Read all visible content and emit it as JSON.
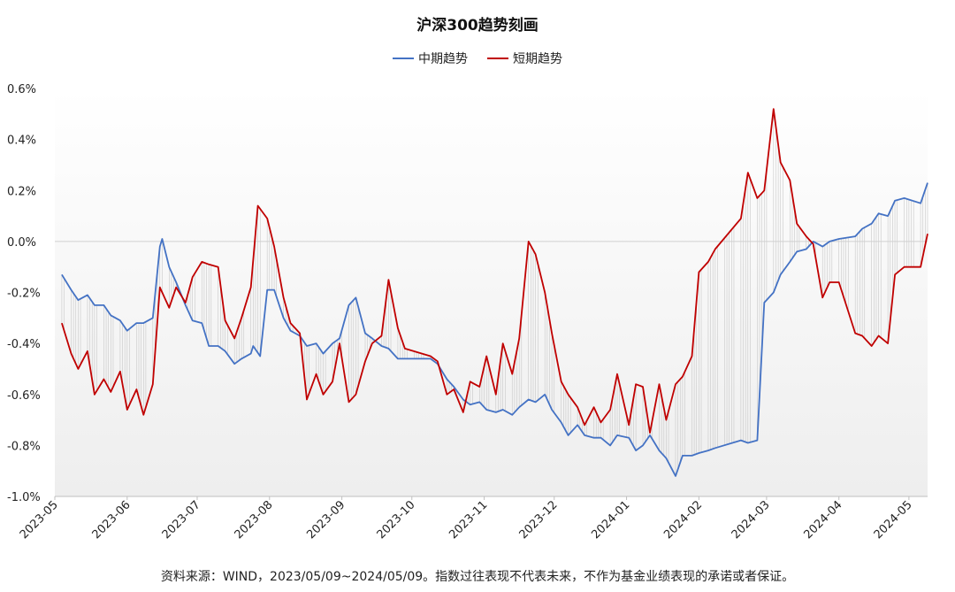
{
  "chart_data": {
    "type": "line",
    "title": "沪深300趋势刻画",
    "xlabel": "",
    "ylabel": "",
    "ylim": [
      -1.0,
      0.6
    ],
    "y_ticks": [
      "-1.0%",
      "-0.8%",
      "-0.6%",
      "-0.4%",
      "-0.2%",
      "0.0%",
      "0.2%",
      "0.4%",
      "0.6%"
    ],
    "x_ticks": [
      "2023-05",
      "2023-06",
      "2023-07",
      "2023-08",
      "2023-09",
      "2023-10",
      "2023-11",
      "2023-12",
      "2024-01",
      "2024-02",
      "2024-03",
      "2024-04",
      "2024-05"
    ],
    "x_range": [
      "2023-05-01",
      "2024-05-09"
    ],
    "legend_position": "top-center",
    "grid": false,
    "series": [
      {
        "name": "中期趋势",
        "color": "#4472C4",
        "x": [
          "2023-05-04",
          "2023-05-08",
          "2023-05-11",
          "2023-05-15",
          "2023-05-18",
          "2023-05-22",
          "2023-05-25",
          "2023-05-29",
          "2023-06-01",
          "2023-06-05",
          "2023-06-08",
          "2023-06-12",
          "2023-06-15",
          "2023-06-16",
          "2023-06-19",
          "2023-06-22",
          "2023-06-26",
          "2023-06-29",
          "2023-07-03",
          "2023-07-06",
          "2023-07-10",
          "2023-07-13",
          "2023-07-17",
          "2023-07-20",
          "2023-07-24",
          "2023-07-25",
          "2023-07-28",
          "2023-07-31",
          "2023-08-03",
          "2023-08-07",
          "2023-08-10",
          "2023-08-14",
          "2023-08-17",
          "2023-08-21",
          "2023-08-24",
          "2023-08-28",
          "2023-08-31",
          "2023-09-04",
          "2023-09-07",
          "2023-09-11",
          "2023-09-14",
          "2023-09-18",
          "2023-09-21",
          "2023-09-25",
          "2023-10-09",
          "2023-10-12",
          "2023-10-16",
          "2023-10-19",
          "2023-10-23",
          "2023-10-26",
          "2023-10-30",
          "2023-11-02",
          "2023-11-06",
          "2023-11-09",
          "2023-11-13",
          "2023-11-16",
          "2023-11-20",
          "2023-11-23",
          "2023-11-27",
          "2023-11-30",
          "2023-12-04",
          "2023-12-07",
          "2023-12-11",
          "2023-12-14",
          "2023-12-18",
          "2023-12-21",
          "2023-12-25",
          "2023-12-28",
          "2024-01-02",
          "2024-01-05",
          "2024-01-08",
          "2024-01-11",
          "2024-01-15",
          "2024-01-18",
          "2024-01-22",
          "2024-01-25",
          "2024-01-29",
          "2024-02-01",
          "2024-02-05",
          "2024-02-08",
          "2024-02-19",
          "2024-02-22",
          "2024-02-26",
          "2024-02-29",
          "2024-03-04",
          "2024-03-07",
          "2024-03-11",
          "2024-03-14",
          "2024-03-18",
          "2024-03-21",
          "2024-03-25",
          "2024-03-28",
          "2024-04-01",
          "2024-04-08",
          "2024-04-11",
          "2024-04-15",
          "2024-04-18",
          "2024-04-22",
          "2024-04-25",
          "2024-04-29",
          "2024-05-06",
          "2024-05-09"
        ],
        "values": [
          -0.13,
          -0.19,
          -0.23,
          -0.21,
          -0.25,
          -0.25,
          -0.29,
          -0.31,
          -0.35,
          -0.32,
          -0.32,
          -0.3,
          -0.02,
          0.01,
          -0.1,
          -0.16,
          -0.25,
          -0.31,
          -0.32,
          -0.41,
          -0.41,
          -0.43,
          -0.48,
          -0.46,
          -0.44,
          -0.41,
          -0.45,
          -0.19,
          -0.19,
          -0.3,
          -0.35,
          -0.37,
          -0.41,
          -0.4,
          -0.44,
          -0.4,
          -0.38,
          -0.25,
          -0.22,
          -0.36,
          -0.38,
          -0.41,
          -0.42,
          -0.46,
          -0.46,
          -0.48,
          -0.54,
          -0.57,
          -0.62,
          -0.64,
          -0.63,
          -0.66,
          -0.67,
          -0.66,
          -0.68,
          -0.65,
          -0.62,
          -0.63,
          -0.6,
          -0.66,
          -0.71,
          -0.76,
          -0.72,
          -0.76,
          -0.77,
          -0.77,
          -0.8,
          -0.76,
          -0.77,
          -0.82,
          -0.8,
          -0.76,
          -0.82,
          -0.85,
          -0.92,
          -0.84,
          -0.84,
          -0.83,
          -0.82,
          -0.81,
          -0.78,
          -0.79,
          -0.78,
          -0.24,
          -0.2,
          -0.13,
          -0.08,
          -0.04,
          -0.03,
          0.0,
          -0.02,
          0.0,
          0.01,
          0.02,
          0.05,
          0.07,
          0.11,
          0.1,
          0.16,
          0.17,
          0.15,
          0.23
        ]
      },
      {
        "name": "短期趋势",
        "color": "#C00000",
        "x": [
          "2023-05-04",
          "2023-05-08",
          "2023-05-11",
          "2023-05-15",
          "2023-05-18",
          "2023-05-22",
          "2023-05-25",
          "2023-05-29",
          "2023-06-01",
          "2023-06-05",
          "2023-06-08",
          "2023-06-12",
          "2023-06-15",
          "2023-06-19",
          "2023-06-22",
          "2023-06-26",
          "2023-06-29",
          "2023-07-03",
          "2023-07-06",
          "2023-07-10",
          "2023-07-13",
          "2023-07-17",
          "2023-07-20",
          "2023-07-24",
          "2023-07-27",
          "2023-07-31",
          "2023-08-03",
          "2023-08-07",
          "2023-08-10",
          "2023-08-14",
          "2023-08-17",
          "2023-08-21",
          "2023-08-24",
          "2023-08-28",
          "2023-08-31",
          "2023-09-04",
          "2023-09-07",
          "2023-09-11",
          "2023-09-14",
          "2023-09-18",
          "2023-09-21",
          "2023-09-25",
          "2023-09-28",
          "2023-10-09",
          "2023-10-12",
          "2023-10-16",
          "2023-10-19",
          "2023-10-23",
          "2023-10-26",
          "2023-10-30",
          "2023-11-02",
          "2023-11-06",
          "2023-11-09",
          "2023-11-13",
          "2023-11-16",
          "2023-11-20",
          "2023-11-23",
          "2023-11-27",
          "2023-11-30",
          "2023-12-04",
          "2023-12-07",
          "2023-12-11",
          "2023-12-14",
          "2023-12-18",
          "2023-12-21",
          "2023-12-25",
          "2023-12-28",
          "2024-01-02",
          "2024-01-05",
          "2024-01-08",
          "2024-01-11",
          "2024-01-15",
          "2024-01-18",
          "2024-01-22",
          "2024-01-25",
          "2024-01-29",
          "2024-02-01",
          "2024-02-05",
          "2024-02-08",
          "2024-02-19",
          "2024-02-22",
          "2024-02-26",
          "2024-02-29",
          "2024-03-04",
          "2024-03-07",
          "2024-03-11",
          "2024-03-14",
          "2024-03-18",
          "2024-03-21",
          "2024-03-25",
          "2024-03-28",
          "2024-04-01",
          "2024-04-08",
          "2024-04-11",
          "2024-04-15",
          "2024-04-18",
          "2024-04-22",
          "2024-04-25",
          "2024-04-29",
          "2024-05-06",
          "2024-05-09"
        ],
        "values": [
          -0.32,
          -0.44,
          -0.5,
          -0.43,
          -0.6,
          -0.54,
          -0.59,
          -0.51,
          -0.66,
          -0.58,
          -0.68,
          -0.56,
          -0.18,
          -0.26,
          -0.18,
          -0.24,
          -0.14,
          -0.08,
          -0.09,
          -0.1,
          -0.31,
          -0.38,
          -0.3,
          -0.18,
          0.14,
          0.09,
          -0.02,
          -0.22,
          -0.32,
          -0.36,
          -0.62,
          -0.52,
          -0.6,
          -0.55,
          -0.4,
          -0.63,
          -0.6,
          -0.47,
          -0.4,
          -0.37,
          -0.15,
          -0.34,
          -0.42,
          -0.45,
          -0.47,
          -0.6,
          -0.58,
          -0.67,
          -0.55,
          -0.57,
          -0.45,
          -0.6,
          -0.4,
          -0.52,
          -0.38,
          0.0,
          -0.05,
          -0.2,
          -0.36,
          -0.55,
          -0.6,
          -0.65,
          -0.72,
          -0.65,
          -0.71,
          -0.66,
          -0.52,
          -0.72,
          -0.56,
          -0.57,
          -0.75,
          -0.56,
          -0.7,
          -0.56,
          -0.53,
          -0.45,
          -0.12,
          -0.08,
          -0.03,
          0.09,
          0.27,
          0.17,
          0.2,
          0.52,
          0.31,
          0.24,
          0.07,
          0.02,
          -0.01,
          -0.22,
          -0.16,
          -0.16,
          -0.36,
          -0.37,
          -0.41,
          -0.37,
          -0.4,
          -0.13,
          -0.1,
          -0.1,
          0.03
        ]
      }
    ]
  },
  "footnote": "资料来源：WIND，2023/05/09~2024/05/09。指数过往表现不代表未来，不作为基金业绩表现的承诺或者保证。"
}
